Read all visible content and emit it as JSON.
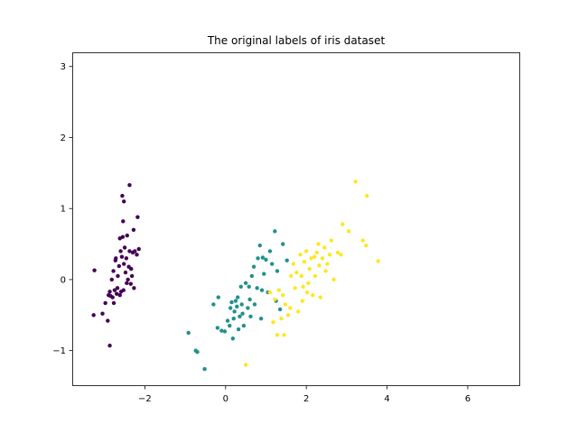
{
  "chart_data": {
    "type": "scatter",
    "title": "The original labels of iris dataset",
    "xlabel": "",
    "ylabel": "",
    "xlim": [
      -3.8,
      7.3
    ],
    "ylim": [
      -1.5,
      3.2
    ],
    "xticks": [
      -2,
      0,
      2,
      4,
      6
    ],
    "yticks": [
      -1,
      0,
      1,
      2,
      3
    ],
    "xtick_labels": [
      "−2",
      "0",
      "2",
      "4",
      "6"
    ],
    "ytick_labels": [
      "−1",
      "0",
      "1",
      "2",
      "3"
    ],
    "grid": false,
    "legend": "none",
    "series": [
      {
        "color": "#440154",
        "points": [
          [
            -3.25,
            0.13
          ],
          [
            -3.27,
            -0.5
          ],
          [
            -3.05,
            -0.48
          ],
          [
            -2.98,
            -0.33
          ],
          [
            -2.87,
            -0.93
          ],
          [
            -2.92,
            -0.58
          ],
          [
            -2.9,
            -0.22
          ],
          [
            -2.87,
            -0.17
          ],
          [
            -2.85,
            -0.23
          ],
          [
            -2.82,
            0.0
          ],
          [
            -2.8,
            -0.25
          ],
          [
            -2.78,
            0.12
          ],
          [
            -2.77,
            -0.33
          ],
          [
            -2.75,
            -0.15
          ],
          [
            -2.72,
            0.3
          ],
          [
            -2.7,
            -0.2
          ],
          [
            -2.68,
            -0.12
          ],
          [
            -2.67,
            0.05
          ],
          [
            -2.64,
            0.19
          ],
          [
            -2.62,
            -0.22
          ],
          [
            -2.6,
            0.4
          ],
          [
            -2.59,
            -0.17
          ],
          [
            -2.57,
            0.32
          ],
          [
            -2.55,
            0.6
          ],
          [
            -2.54,
            0.82
          ],
          [
            -2.53,
            -0.15
          ],
          [
            -2.52,
            0.22
          ],
          [
            -2.5,
            0.45
          ],
          [
            -2.48,
            0.1
          ],
          [
            -2.46,
            0.3
          ],
          [
            -2.45,
            -0.05
          ],
          [
            -2.44,
            0.62
          ],
          [
            -2.42,
            0.0
          ],
          [
            -2.4,
            0.18
          ],
          [
            -2.38,
            0.4
          ],
          [
            -2.35,
            -0.06
          ],
          [
            -2.34,
            0.15
          ],
          [
            -2.32,
            0.05
          ],
          [
            -2.3,
            0.38
          ],
          [
            -2.28,
            0.7
          ],
          [
            -2.27,
            -0.12
          ],
          [
            -2.25,
            0.4
          ],
          [
            -2.2,
            0.35
          ],
          [
            -2.18,
            0.88
          ],
          [
            -2.56,
            1.18
          ],
          [
            -2.52,
            1.1
          ],
          [
            -2.38,
            1.33
          ],
          [
            -2.15,
            0.43
          ],
          [
            -2.62,
            0.58
          ],
          [
            -2.73,
            0.27
          ]
        ]
      },
      {
        "color": "#21918c",
        "points": [
          [
            -0.92,
            -0.75
          ],
          [
            -0.74,
            -1.0
          ],
          [
            -0.7,
            -1.02
          ],
          [
            -0.52,
            -1.26
          ],
          [
            -0.3,
            -0.35
          ],
          [
            -0.2,
            -0.68
          ],
          [
            -0.18,
            -0.25
          ],
          [
            -0.1,
            -0.72
          ],
          [
            -0.02,
            -0.73
          ],
          [
            0.05,
            -0.58
          ],
          [
            0.1,
            -0.65
          ],
          [
            0.12,
            -0.4
          ],
          [
            0.15,
            -0.32
          ],
          [
            0.18,
            -0.83
          ],
          [
            0.2,
            -0.55
          ],
          [
            0.22,
            -0.45
          ],
          [
            0.25,
            -0.3
          ],
          [
            0.28,
            -0.38
          ],
          [
            0.3,
            -0.25
          ],
          [
            0.32,
            -0.7
          ],
          [
            0.35,
            -0.52
          ],
          [
            0.38,
            -0.1
          ],
          [
            0.4,
            -0.35
          ],
          [
            0.42,
            -0.48
          ],
          [
            0.45,
            -0.65
          ],
          [
            0.5,
            -0.05
          ],
          [
            0.55,
            -0.4
          ],
          [
            0.58,
            -0.1
          ],
          [
            0.6,
            -0.28
          ],
          [
            0.62,
            -0.52
          ],
          [
            0.65,
            0.05
          ],
          [
            0.7,
            0.18
          ],
          [
            0.72,
            -0.35
          ],
          [
            0.78,
            -0.12
          ],
          [
            0.8,
            0.3
          ],
          [
            0.85,
            0.48
          ],
          [
            0.88,
            -0.55
          ],
          [
            0.9,
            -0.15
          ],
          [
            0.95,
            0.08
          ],
          [
            1.0,
            0.28
          ],
          [
            1.05,
            -0.18
          ],
          [
            1.1,
            0.4
          ],
          [
            1.15,
            0.22
          ],
          [
            1.22,
            0.68
          ],
          [
            1.25,
            -0.3
          ],
          [
            1.28,
            0.12
          ],
          [
            1.35,
            -0.42
          ],
          [
            1.42,
            0.5
          ],
          [
            1.52,
            0.27
          ],
          [
            0.92,
            0.31
          ]
        ]
      },
      {
        "color": "#fde725",
        "points": [
          [
            0.5,
            -1.2
          ],
          [
            1.1,
            -0.18
          ],
          [
            1.18,
            -0.6
          ],
          [
            1.22,
            -0.28
          ],
          [
            1.28,
            -0.78
          ],
          [
            1.32,
            -0.15
          ],
          [
            1.38,
            -0.55
          ],
          [
            1.42,
            -0.22
          ],
          [
            1.48,
            -0.35
          ],
          [
            1.55,
            -0.5
          ],
          [
            1.6,
            -0.4
          ],
          [
            1.68,
            0.22
          ],
          [
            1.72,
            -0.12
          ],
          [
            1.76,
            0.1
          ],
          [
            1.8,
            -0.45
          ],
          [
            1.85,
            0.35
          ],
          [
            1.88,
            0.05
          ],
          [
            1.92,
            -0.1
          ],
          [
            1.95,
            0.25
          ],
          [
            2.0,
            0.4
          ],
          [
            2.02,
            -0.18
          ],
          [
            2.08,
            0.15
          ],
          [
            2.12,
            0.3
          ],
          [
            2.16,
            -0.22
          ],
          [
            2.22,
            0.05
          ],
          [
            2.26,
            0.38
          ],
          [
            2.32,
            0.2
          ],
          [
            2.35,
            -0.25
          ],
          [
            2.4,
            0.3
          ],
          [
            2.45,
            0.45
          ],
          [
            2.48,
            0.12
          ],
          [
            2.52,
            0.22
          ],
          [
            2.58,
            0.35
          ],
          [
            2.62,
            0.55
          ],
          [
            2.68,
            0.0
          ],
          [
            2.78,
            0.38
          ],
          [
            2.86,
            0.35
          ],
          [
            2.9,
            0.78
          ],
          [
            3.05,
            0.68
          ],
          [
            3.22,
            1.38
          ],
          [
            3.4,
            0.55
          ],
          [
            3.48,
            0.48
          ],
          [
            3.5,
            1.18
          ],
          [
            3.78,
            0.26
          ],
          [
            2.2,
            0.32
          ],
          [
            1.45,
            -0.78
          ],
          [
            1.9,
            -0.3
          ],
          [
            2.3,
            0.5
          ],
          [
            1.62,
            0.05
          ],
          [
            2.05,
            -0.05
          ]
        ]
      }
    ]
  }
}
